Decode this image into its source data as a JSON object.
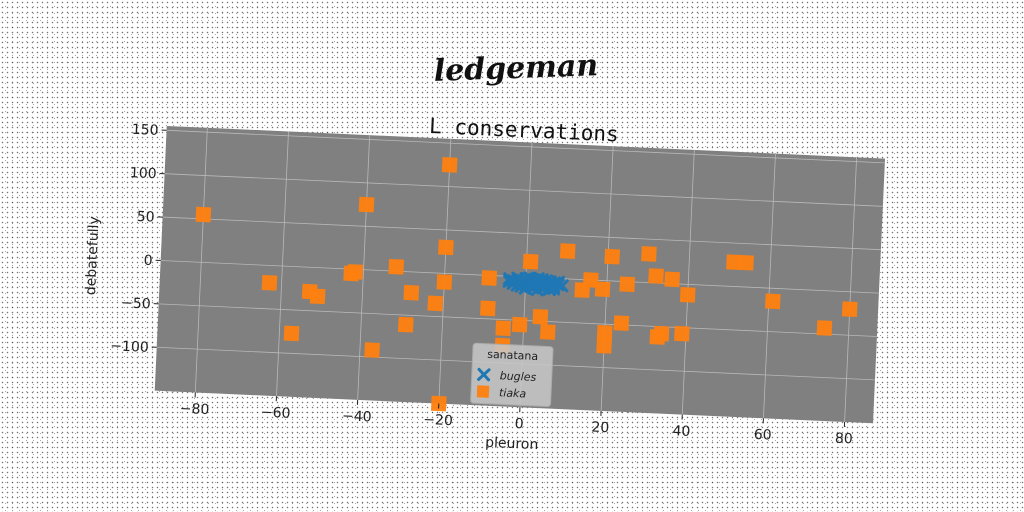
{
  "suptitle": "ledgeman",
  "chart_data": {
    "type": "scatter",
    "title": "L conservations",
    "xlabel": "pleuron",
    "ylabel": "debatefully",
    "xlim": [
      -90,
      87
    ],
    "ylim": [
      -150,
      155
    ],
    "xticks": [
      -80,
      -60,
      -40,
      -20,
      0,
      20,
      40,
      60,
      80
    ],
    "xtick_labels": [
      "−80",
      "−60",
      "−40",
      "−20",
      "0",
      "20",
      "40",
      "60",
      "80"
    ],
    "yticks": [
      -100,
      -50,
      0,
      50,
      100,
      150
    ],
    "ytick_labels": [
      "−100",
      "−50",
      "0",
      "50",
      "100",
      "150"
    ],
    "grid": true,
    "legend": {
      "title": "sanatana",
      "placement": "lower-center"
    },
    "colors": {
      "plot_background": "#808080",
      "series_1": "#1f77b4",
      "series_2": "#ff7f0e",
      "grid": "#b8b8b8"
    },
    "series": [
      {
        "name": "bugles",
        "marker": "x",
        "color": "#1f77b4",
        "points": [
          [
            -4,
            -3
          ],
          [
            -3,
            -5
          ],
          [
            -2,
            -2
          ],
          [
            -1,
            -7
          ],
          [
            0,
            -4
          ],
          [
            1,
            -6
          ],
          [
            2,
            -3
          ],
          [
            3,
            -8
          ],
          [
            4,
            -5
          ],
          [
            5,
            -10
          ],
          [
            6,
            -6
          ],
          [
            7,
            -9
          ],
          [
            8,
            -4
          ],
          [
            -3,
            -8
          ],
          [
            -1,
            -11
          ],
          [
            0,
            -2
          ],
          [
            1,
            -9
          ],
          [
            2,
            -12
          ],
          [
            3,
            -4
          ],
          [
            4,
            -7
          ],
          [
            5,
            -3
          ],
          [
            6,
            -11
          ],
          [
            7,
            -5
          ],
          [
            -2,
            -10
          ],
          [
            0,
            -13
          ],
          [
            1,
            -1
          ],
          [
            2,
            -6
          ],
          [
            3,
            -14
          ],
          [
            4,
            -2
          ],
          [
            5,
            -8
          ],
          [
            6,
            -13
          ],
          [
            8,
            -7
          ],
          [
            -4,
            -6
          ],
          [
            -1,
            -4
          ],
          [
            2,
            -9
          ],
          [
            3,
            -1
          ],
          [
            4,
            -11
          ],
          [
            6,
            -4
          ],
          [
            7,
            -12
          ],
          [
            9,
            -8
          ]
        ]
      },
      {
        "name": "tiaka",
        "marker": "s",
        "color": "#ff7f0e",
        "points": [
          [
            -80,
            55
          ],
          [
            -20,
            125
          ],
          [
            -40,
            75
          ],
          [
            -20,
            30
          ],
          [
            -63,
            -20
          ],
          [
            -57,
            -77
          ],
          [
            -51,
            -33
          ],
          [
            -53,
            -28
          ],
          [
            -43,
            -5
          ],
          [
            -42,
            -3
          ],
          [
            -32,
            5
          ],
          [
            -28,
            -24
          ],
          [
            -29,
            -61
          ],
          [
            -37,
            -92
          ],
          [
            -22,
            -35
          ],
          [
            -20,
            -10
          ],
          [
            -20,
            -150
          ],
          [
            -9,
            -3
          ],
          [
            -9,
            -38
          ],
          [
            -5,
            -60
          ],
          [
            -5,
            -80
          ],
          [
            -1,
            -55
          ],
          [
            1,
            18
          ],
          [
            4,
            -45
          ],
          [
            6,
            -62
          ],
          [
            10,
            32
          ],
          [
            14,
            -12
          ],
          [
            16,
            0
          ],
          [
            19,
            -10
          ],
          [
            20,
            -60
          ],
          [
            20,
            -75
          ],
          [
            21,
            28
          ],
          [
            24,
            -48
          ],
          [
            25,
            -3
          ],
          [
            30,
            33
          ],
          [
            32,
            8
          ],
          [
            33,
            -62
          ],
          [
            34,
            -58
          ],
          [
            36,
            5
          ],
          [
            39,
            -57
          ],
          [
            40,
            -12
          ],
          [
            51,
            28
          ],
          [
            54,
            28
          ],
          [
            61,
            -15
          ],
          [
            74,
            -43
          ],
          [
            80,
            -20
          ]
        ]
      }
    ]
  }
}
